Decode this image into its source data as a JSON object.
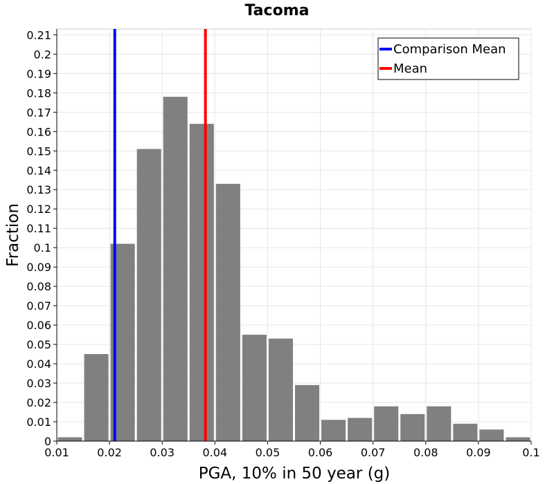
{
  "chart_data": {
    "type": "bar",
    "title": "Tacoma",
    "xlabel": "PGA, 10% in 50 year (g)",
    "ylabel": "Fraction",
    "xlim": [
      0.01,
      0.1
    ],
    "ylim": [
      0,
      0.213
    ],
    "grid": true,
    "bar_color": "#808080",
    "bin_width": 0.005,
    "bins": [
      {
        "center": 0.0125,
        "value": 0.002
      },
      {
        "center": 0.0175,
        "value": 0.045
      },
      {
        "center": 0.0225,
        "value": 0.102
      },
      {
        "center": 0.0275,
        "value": 0.151
      },
      {
        "center": 0.0325,
        "value": 0.178
      },
      {
        "center": 0.0375,
        "value": 0.164
      },
      {
        "center": 0.0425,
        "value": 0.133
      },
      {
        "center": 0.0475,
        "value": 0.055
      },
      {
        "center": 0.0525,
        "value": 0.053
      },
      {
        "center": 0.0575,
        "value": 0.029
      },
      {
        "center": 0.0625,
        "value": 0.011
      },
      {
        "center": 0.0675,
        "value": 0.012
      },
      {
        "center": 0.0725,
        "value": 0.018
      },
      {
        "center": 0.0775,
        "value": 0.014
      },
      {
        "center": 0.0825,
        "value": 0.018
      },
      {
        "center": 0.0875,
        "value": 0.009
      },
      {
        "center": 0.0925,
        "value": 0.006
      },
      {
        "center": 0.0975,
        "value": 0.002
      }
    ],
    "vertical_lines": [
      {
        "name": "Comparison Mean",
        "x": 0.021,
        "color": "#0000ff"
      },
      {
        "name": "Mean",
        "x": 0.0382,
        "color": "#ff0000"
      }
    ],
    "xticks": [
      "0.01",
      "0.02",
      "0.03",
      "0.04",
      "0.05",
      "0.06",
      "0.07",
      "0.08",
      "0.09",
      "0.1"
    ],
    "yticks": [
      "0",
      "0.01",
      "0.02",
      "0.03",
      "0.04",
      "0.05",
      "0.06",
      "0.07",
      "0.08",
      "0.09",
      "0.1",
      "0.11",
      "0.12",
      "0.13",
      "0.14",
      "0.15",
      "0.16",
      "0.17",
      "0.18",
      "0.19",
      "0.2",
      "0.21"
    ],
    "legend": {
      "position": "top-right",
      "entries": [
        {
          "label": "Comparison Mean",
          "color": "#0000ff"
        },
        {
          "label": "Mean",
          "color": "#ff0000"
        }
      ]
    }
  }
}
